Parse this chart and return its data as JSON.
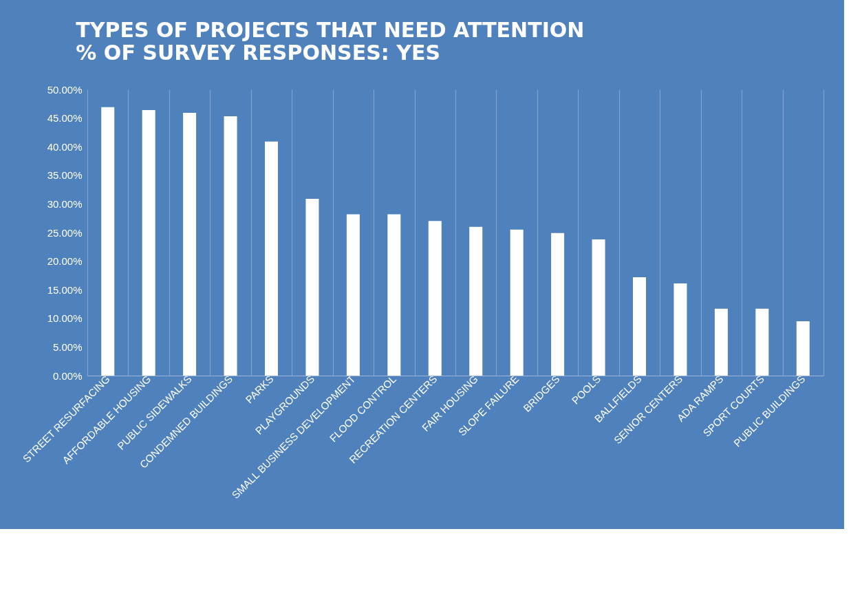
{
  "chart_data": {
    "type": "bar",
    "title": "TYPES OF PROJECTS THAT NEED ATTENTION",
    "subtitle": "% OF SURVEY RESPONSES: YES",
    "categories": [
      "STREET RESURFACING",
      "AFFORDABLE HOUSING",
      "PUBLIC SIDEWALKS",
      "CONDEMNED BUILDINGS",
      "PARKS",
      "PLAYGROUNDS",
      "SMALL BUSINESS DEVELOPMENT",
      "FLOOD CONTROL",
      "RECREATION CENTERS",
      "FAIR HOUSING",
      "SLOPE FAILURE",
      "BRIDGES",
      "POOLS",
      "BALLFIELDS",
      "SENIOR CENTERS",
      "ADA RAMPS",
      "SPORT COURTS",
      "PUBLIC BUILDINGS"
    ],
    "values": [
      46.9,
      46.4,
      45.9,
      45.3,
      40.9,
      30.9,
      28.2,
      28.2,
      27.0,
      26.0,
      25.5,
      24.9,
      23.8,
      17.2,
      16.1,
      11.7,
      11.7,
      9.5
    ],
    "color": "#ffffff",
    "ylim": [
      0,
      50
    ],
    "yticks": [
      {
        "value": 0,
        "label": "0.00%"
      },
      {
        "value": 5,
        "label": "5.00%"
      },
      {
        "value": 10,
        "label": "10.00%"
      },
      {
        "value": 15,
        "label": "15.00%"
      },
      {
        "value": 20,
        "label": "20.00%"
      },
      {
        "value": 25,
        "label": "25.00%"
      },
      {
        "value": 30,
        "label": "30.00%"
      },
      {
        "value": 35,
        "label": "35.00%"
      },
      {
        "value": 40,
        "label": "40.00%"
      },
      {
        "value": 45,
        "label": "45.00%"
      },
      {
        "value": 50,
        "label": "50.00%"
      }
    ],
    "grid": "x"
  }
}
